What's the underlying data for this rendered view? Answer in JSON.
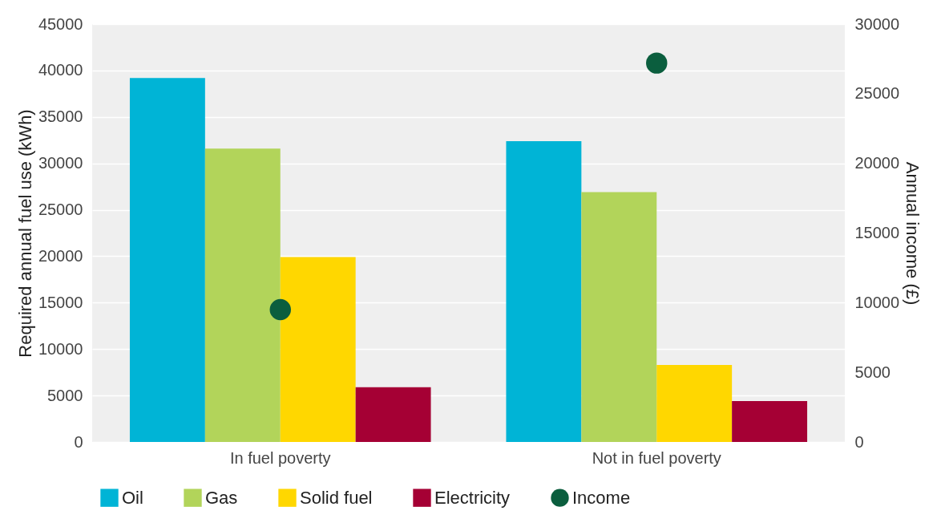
{
  "chart_data": {
    "type": "bar",
    "ylabel": "Required annual fuel use (kWh)",
    "y2label": "Annual income (£)",
    "categories": [
      "In fuel poverty",
      "Not in fuel poverty"
    ],
    "series": [
      {
        "name": "Oil",
        "color": "#00b4d6",
        "values": [
          39200,
          32400
        ]
      },
      {
        "name": "Gas",
        "color": "#b2d45a",
        "values": [
          31600,
          26900
        ]
      },
      {
        "name": "Solid fuel",
        "color": "#ffd700",
        "values": [
          19900,
          8300
        ]
      },
      {
        "name": "Electricity",
        "color": "#a50034",
        "values": [
          5900,
          4400
        ]
      },
      {
        "name": "Income",
        "color": "#0b5e3e",
        "values": [
          9500,
          27200
        ],
        "type": "scatter",
        "axis": "y2",
        "marker": "circle"
      }
    ],
    "ylim": [
      0,
      45000
    ],
    "yticks": [
      0,
      5000,
      10000,
      15000,
      20000,
      25000,
      30000,
      35000,
      40000,
      45000
    ],
    "y2lim": [
      0,
      30000
    ],
    "y2ticks": [
      0,
      5000,
      10000,
      15000,
      20000,
      25000,
      30000
    ],
    "grid": "y",
    "legend": "bottom"
  }
}
